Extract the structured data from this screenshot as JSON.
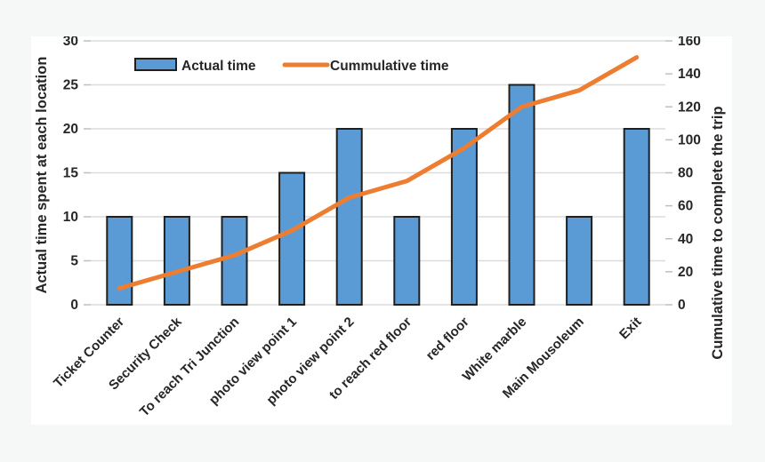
{
  "colors": {
    "page_bg": "#f6f7f7",
    "panel_bg": "#ffffff",
    "bar_fill": "#5B9BD5",
    "bar_border": "#1f1f1f",
    "line": "#ED7D31",
    "grid": "#DCDCDC",
    "tick": "#BFBFBF",
    "text": "#262626"
  },
  "chart_data": {
    "type": "bar",
    "subtype": "combo-bar-line",
    "categories": [
      "Ticket Counter",
      "Security Check",
      "To reach Tri Junction",
      "photo view point 1",
      "photo view point 2",
      "to reach red floor",
      "red floor",
      "White marble",
      "Main Mousoleum",
      "Exit"
    ],
    "series": [
      {
        "name": "Actual time",
        "type": "bar",
        "axis": "left",
        "values": [
          10,
          10,
          10,
          15,
          20,
          10,
          20,
          25,
          10,
          20
        ]
      },
      {
        "name": "Cummulative time",
        "type": "line",
        "axis": "right",
        "values": [
          10,
          20,
          30,
          45,
          65,
          75,
          95,
          120,
          130,
          150
        ]
      }
    ],
    "left_axis": {
      "label": "Actual time spent at each location",
      "min": 0,
      "max": 30,
      "step": 5,
      "ticks": [
        0,
        5,
        10,
        15,
        20,
        25,
        30
      ]
    },
    "right_axis": {
      "label": "Cumulative time to complete the trip",
      "min": 0,
      "max": 160,
      "step": 20,
      "ticks": [
        0,
        20,
        40,
        60,
        80,
        100,
        120,
        140,
        160
      ]
    },
    "legend": {
      "position": "top",
      "entries": [
        {
          "label": "Actual time",
          "swatch": "bar-swatch"
        },
        {
          "label": "Cummulative time",
          "swatch": "line-swatch"
        }
      ]
    },
    "grid": true,
    "title": "",
    "xlabel": ""
  }
}
